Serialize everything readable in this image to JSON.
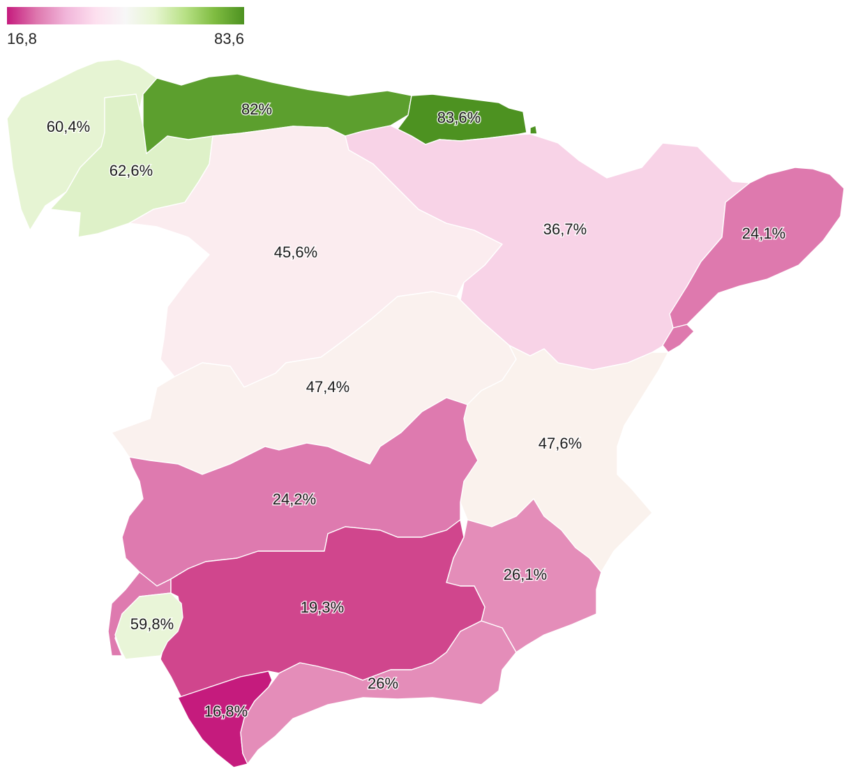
{
  "legend": {
    "min_label": "16,8",
    "max_label": "83,6",
    "colors": [
      "#c51b7d",
      "#de77ae",
      "#f1b6da",
      "#fde0ef",
      "#f7f7f7",
      "#e6f5d0",
      "#b8e186",
      "#7fbc41",
      "#4d9221"
    ]
  },
  "regions": [
    {
      "id": "galicia",
      "value_label": "60,4%",
      "color": "#e6f4d3"
    },
    {
      "id": "leon",
      "value_label": "62,6%",
      "color": "#def1c8"
    },
    {
      "id": "asturias-cantabria",
      "value_label": "82%",
      "color": "#5c9f2e"
    },
    {
      "id": "basque-country",
      "value_label": "83,6%",
      "color": "#4d9221"
    },
    {
      "id": "castilla-y-leon",
      "value_label": "45,6%",
      "color": "#fbecef"
    },
    {
      "id": "aragon",
      "value_label": "36,7%",
      "color": "#f8d3e7"
    },
    {
      "id": "catalonia",
      "value_label": "24,1%",
      "color": "#de79ae"
    },
    {
      "id": "madrid-castilla",
      "value_label": "47,4%",
      "color": "#faf1ee"
    },
    {
      "id": "valencia",
      "value_label": "47,6%",
      "color": "#faf2ed"
    },
    {
      "id": "extremadura-andalusia-north",
      "value_label": "24,2%",
      "color": "#de7aaf"
    },
    {
      "id": "murcia",
      "value_label": "26,1%",
      "color": "#e48db9"
    },
    {
      "id": "andalusia-central",
      "value_label": "19,3%",
      "color": "#d0468d"
    },
    {
      "id": "huelva-coast",
      "value_label": "59,8%",
      "color": "#e9f5d8"
    },
    {
      "id": "cadiz",
      "value_label": "16,8%",
      "color": "#c51b7d"
    },
    {
      "id": "malaga-coast",
      "value_label": "26%",
      "color": "#e48db9"
    }
  ],
  "unlabeled_areas": [
    {
      "id": "huelva-west",
      "color": "#de7aaf"
    },
    {
      "id": "castellon-strip",
      "color": "#de79ae"
    },
    {
      "id": "navarra-edge",
      "color": "#4d9221"
    }
  ]
}
